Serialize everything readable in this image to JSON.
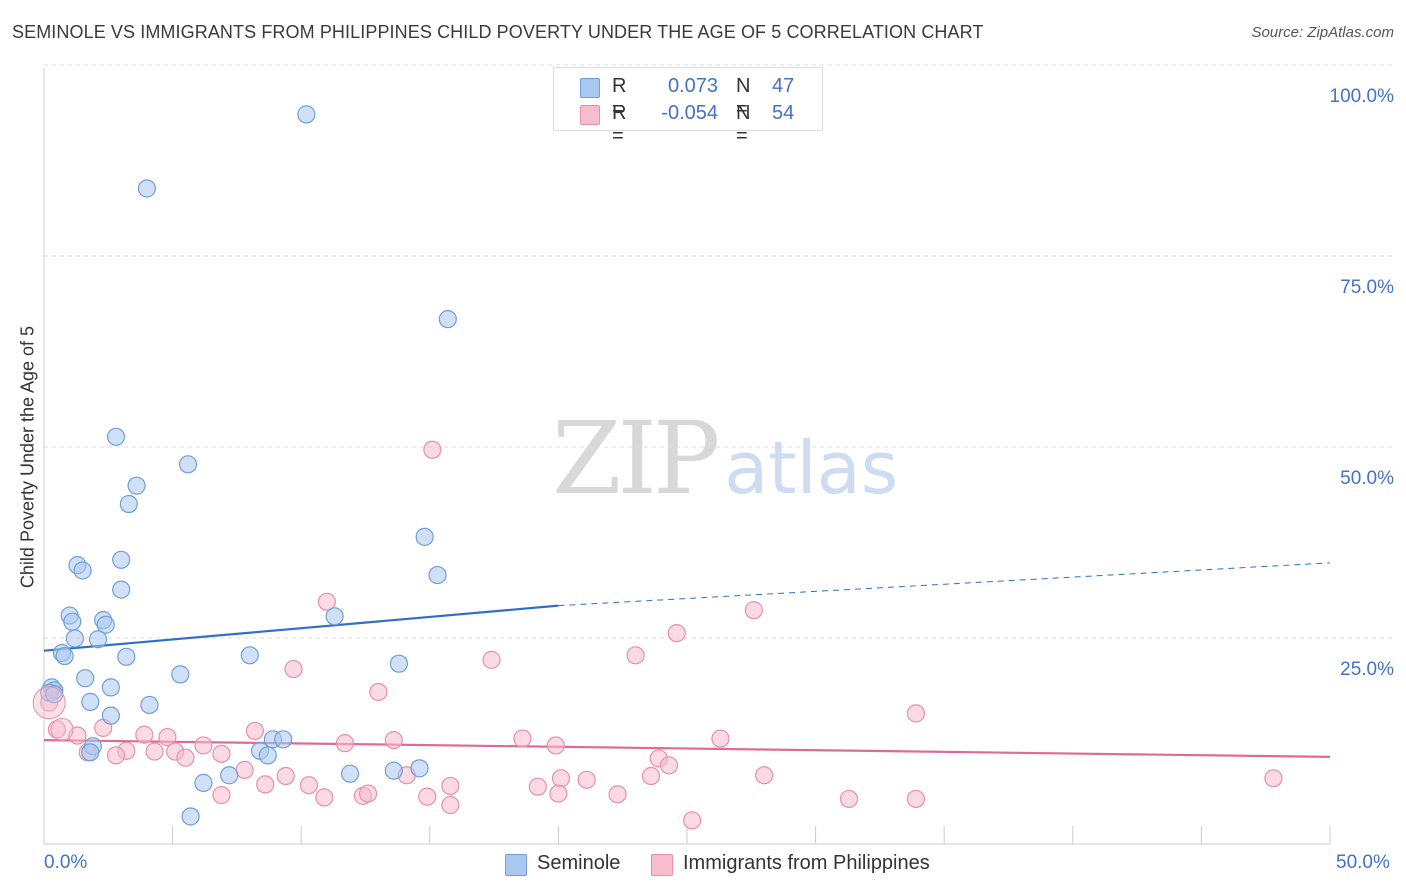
{
  "title": "SEMINOLE VS IMMIGRANTS FROM PHILIPPINES CHILD POVERTY UNDER THE AGE OF 5 CORRELATION CHART",
  "source": "Source: ZipAtlas.com",
  "watermark": {
    "zip": "ZIP",
    "atlas": "atlas"
  },
  "legend_top": [
    {
      "r_label": "R =",
      "r_value": "0.073",
      "n_label": "N =",
      "n_value": "47",
      "color": "#a9c8f0",
      "border": "#6f9fd8"
    },
    {
      "r_label": "R =",
      "r_value": "-0.054",
      "n_label": "N =",
      "n_value": "54",
      "color": "#f7bccd",
      "border": "#e98fab"
    }
  ],
  "legend_bottom": [
    {
      "label": "Seminole",
      "color": "#a9c8f0",
      "border": "#6f9fd8"
    },
    {
      "label": "Immigrants from Philippines",
      "color": "#f7bccd",
      "border": "#e98fab"
    }
  ],
  "y_ticks": [
    "100.0%",
    "75.0%",
    "50.0%",
    "25.0%"
  ],
  "x_ticks": [
    "0.0%",
    "50.0%"
  ],
  "chart_data": {
    "type": "scatter",
    "xlabel": "",
    "ylabel": "Child Poverty Under the Age of 5",
    "xlim": [
      0,
      50
    ],
    "ylim": [
      0,
      100
    ],
    "grid": true,
    "series": [
      {
        "name": "Seminole",
        "color": "#6f9fd8",
        "fill": "#a9c8f0",
        "trend": {
          "x": [
            0,
            20
          ],
          "y": [
            25.3,
            31.2
          ],
          "dashed_to": [
            50,
            36.8
          ],
          "color": "#2f6fcc"
        },
        "points": [
          [
            10.2,
            95.5
          ],
          [
            4.0,
            85.8
          ],
          [
            15.7,
            68.7
          ],
          [
            2.8,
            53.3
          ],
          [
            5.6,
            49.7
          ],
          [
            3.6,
            46.9
          ],
          [
            3.3,
            44.5
          ],
          [
            14.8,
            40.2
          ],
          [
            3.0,
            37.2
          ],
          [
            1.3,
            36.5
          ],
          [
            1.5,
            35.8
          ],
          [
            15.3,
            35.2
          ],
          [
            3.0,
            33.3
          ],
          [
            1.0,
            29.9
          ],
          [
            11.3,
            29.8
          ],
          [
            1.1,
            29.1
          ],
          [
            2.3,
            29.3
          ],
          [
            2.4,
            28.7
          ],
          [
            1.2,
            26.9
          ],
          [
            2.1,
            26.8
          ],
          [
            0.7,
            25.0
          ],
          [
            0.8,
            24.6
          ],
          [
            3.2,
            24.5
          ],
          [
            8.0,
            24.7
          ],
          [
            13.8,
            23.6
          ],
          [
            5.3,
            22.2
          ],
          [
            1.6,
            21.7
          ],
          [
            0.3,
            20.5
          ],
          [
            0.4,
            20.1
          ],
          [
            0.2,
            19.8
          ],
          [
            0.4,
            19.6
          ],
          [
            2.6,
            20.5
          ],
          [
            1.8,
            18.6
          ],
          [
            4.1,
            18.2
          ],
          [
            2.6,
            16.8
          ],
          [
            1.9,
            12.8
          ],
          [
            1.8,
            12.0
          ],
          [
            8.4,
            12.2
          ],
          [
            8.9,
            13.7
          ],
          [
            9.3,
            13.7
          ],
          [
            8.7,
            11.6
          ],
          [
            11.9,
            9.2
          ],
          [
            14.6,
            9.9
          ],
          [
            13.6,
            9.6
          ],
          [
            7.2,
            9.0
          ],
          [
            6.2,
            8.0
          ],
          [
            5.7,
            3.6
          ]
        ]
      },
      {
        "name": "Immigrants from Philippines",
        "color": "#e98fab",
        "fill": "#f7bccd",
        "trend": {
          "x": [
            0,
            50
          ],
          "y": [
            13.6,
            11.4
          ],
          "color": "#e06a95"
        },
        "points": [
          [
            15.1,
            51.6
          ],
          [
            27.6,
            30.6
          ],
          [
            24.6,
            27.6
          ],
          [
            11.0,
            31.7
          ],
          [
            23.0,
            24.7
          ],
          [
            17.4,
            24.1
          ],
          [
            9.7,
            22.9
          ],
          [
            13.0,
            19.9
          ],
          [
            33.9,
            17.1
          ],
          [
            0.2,
            18.5
          ],
          [
            0.5,
            15.0
          ],
          [
            2.3,
            15.2
          ],
          [
            1.3,
            14.2
          ],
          [
            8.2,
            14.8
          ],
          [
            3.9,
            14.3
          ],
          [
            4.8,
            14.0
          ],
          [
            11.7,
            13.2
          ],
          [
            13.6,
            13.6
          ],
          [
            18.6,
            13.8
          ],
          [
            26.3,
            13.8
          ],
          [
            19.9,
            12.9
          ],
          [
            6.2,
            12.9
          ],
          [
            1.7,
            12.0
          ],
          [
            3.2,
            12.2
          ],
          [
            4.3,
            12.1
          ],
          [
            5.1,
            12.1
          ],
          [
            5.5,
            11.3
          ],
          [
            2.8,
            11.6
          ],
          [
            6.9,
            11.8
          ],
          [
            23.9,
            11.2
          ],
          [
            24.3,
            10.3
          ],
          [
            7.8,
            9.7
          ],
          [
            9.4,
            8.9
          ],
          [
            14.1,
            9.0
          ],
          [
            28.0,
            9.0
          ],
          [
            21.1,
            8.4
          ],
          [
            23.6,
            8.9
          ],
          [
            8.6,
            7.8
          ],
          [
            10.3,
            7.7
          ],
          [
            15.8,
            7.6
          ],
          [
            20.1,
            8.6
          ],
          [
            19.2,
            7.5
          ],
          [
            6.9,
            6.4
          ],
          [
            10.9,
            6.1
          ],
          [
            12.4,
            6.3
          ],
          [
            12.6,
            6.6
          ],
          [
            14.9,
            6.2
          ],
          [
            20.0,
            6.6
          ],
          [
            22.3,
            6.5
          ],
          [
            31.3,
            5.9
          ],
          [
            33.9,
            5.9
          ],
          [
            15.8,
            5.1
          ],
          [
            25.2,
            3.1
          ],
          [
            47.8,
            8.6
          ]
        ]
      }
    ]
  }
}
